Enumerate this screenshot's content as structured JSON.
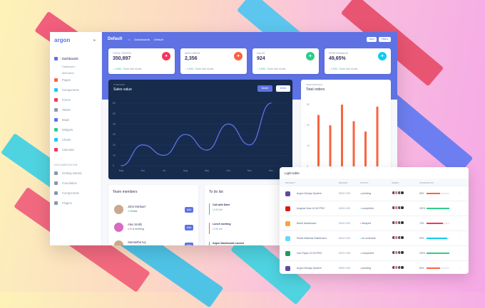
{
  "brand": "argon",
  "sidebar": {
    "items": [
      {
        "label": "Dashboards",
        "color": "#5e72e4",
        "active": true
      },
      {
        "label": "Dashboard",
        "sub": true
      },
      {
        "label": "Alternative",
        "sub": true
      },
      {
        "label": "Pages",
        "color": "#fb6340"
      },
      {
        "label": "Components",
        "color": "#11cdef"
      },
      {
        "label": "Forms",
        "color": "#f5365c"
      },
      {
        "label": "Tables",
        "color": "#8898aa"
      },
      {
        "label": "Maps",
        "color": "#5e72e4"
      },
      {
        "label": "Widgets",
        "color": "#2dce89"
      },
      {
        "label": "Charts",
        "color": "#11cdef"
      },
      {
        "label": "Calendar",
        "color": "#f5365c"
      }
    ],
    "doc_heading": "DOCUMENTATION",
    "doc_items": [
      {
        "label": "Getting started"
      },
      {
        "label": "Foundation"
      },
      {
        "label": "Components"
      },
      {
        "label": "Plugins"
      }
    ]
  },
  "header": {
    "title": "Default",
    "breadcrumb": [
      "Dashboards",
      "Default"
    ],
    "new": "New",
    "filters": "Filters"
  },
  "stats": [
    {
      "label": "Total traffic",
      "value": "350,897",
      "change": "3.48%",
      "since": "Since last month",
      "color": "#f5365c",
      "icon": "hand-pointer-icon"
    },
    {
      "label": "New users",
      "value": "2,356",
      "change": "3.48%",
      "since": "Since last month",
      "color": "#fb6340",
      "icon": "chart-pie-icon"
    },
    {
      "label": "Sales",
      "value": "924",
      "change": "3.48%",
      "since": "Since last month",
      "color": "#2dce89",
      "icon": "money-coins-icon"
    },
    {
      "label": "Performance",
      "value": "49,65%",
      "change": "3.48%",
      "since": "Since last month",
      "color": "#11cdef",
      "icon": "chart-bar-icon"
    }
  ],
  "chart_data": [
    {
      "type": "line",
      "overline": "OVERVIEW",
      "title": "Sales value",
      "buttons": [
        "Month",
        "Week"
      ],
      "categories": [
        "May",
        "Jun",
        "Jul",
        "Aug",
        "Sep",
        "Oct",
        "Nov",
        "Dec"
      ],
      "values": [
        0,
        20,
        10,
        30,
        15,
        40,
        20,
        60
      ],
      "yticks": [
        0,
        10,
        20,
        30,
        40,
        50,
        60
      ],
      "ylim": [
        0,
        60
      ],
      "color": "#5e72e4",
      "grid": true
    },
    {
      "type": "bar",
      "overline": "PERFORMANCE",
      "title": "Total orders",
      "values": [
        25,
        20,
        30,
        22,
        17,
        29
      ],
      "yticks": [
        0,
        10,
        20,
        30
      ],
      "ylim": [
        0,
        30
      ],
      "color": "#fb6340"
    }
  ],
  "team": {
    "title": "Team members",
    "add": "Add",
    "members": [
      {
        "name": "John Michael",
        "status": "Online",
        "dot": "#2dce89"
      },
      {
        "name": "Alex Smith",
        "status": "In a meeting",
        "dot": "#fb6340"
      },
      {
        "name": "Samantha Ivy",
        "status": "",
        "dot": ""
      }
    ]
  },
  "todo": {
    "title": "To do list",
    "items": [
      {
        "title": "Call with Dave",
        "time": "10:30 AM",
        "color": "#2dce89"
      },
      {
        "title": "Lunch meeting",
        "time": "10:30 AM",
        "color": "#fb6340"
      },
      {
        "title": "Argon Dashboard Launch",
        "time": "",
        "color": "#11cdef"
      }
    ]
  },
  "table": {
    "title": "Light table",
    "headers": [
      "PROJECT",
      "BUDGET",
      "STATUS",
      "USERS",
      "COMPLETION"
    ],
    "rows": [
      {
        "project": "Argon Design System",
        "budget": "$2500 USD",
        "status": "pending",
        "status_color": "#f5365c",
        "completion": "60%",
        "pct": 60,
        "bar": "#fb6340",
        "logo": "#5e4b9c"
      },
      {
        "project": "Angular Now UI Kit PRO",
        "budget": "$1800 USD",
        "status": "completed",
        "status_color": "#2dce89",
        "completion": "100%",
        "pct": 100,
        "bar": "#2dce89",
        "logo": "#dd1b16"
      },
      {
        "project": "Black Dashboard",
        "budget": "$3150 USD",
        "status": "delayed",
        "status_color": "#f5365c",
        "completion": "72%",
        "pct": 72,
        "bar": "#f5365c",
        "logo": "#f7a531"
      },
      {
        "project": "React Material Dashboard",
        "budget": "$4400 USD",
        "status": "on schedule",
        "status_color": "#11cdef",
        "completion": "90%",
        "pct": 90,
        "bar": "#11cdef",
        "logo": "#61dafb"
      },
      {
        "project": "Vue Paper UI Kit PRO",
        "budget": "$2200 USD",
        "status": "completed",
        "status_color": "#2dce89",
        "completion": "100%",
        "pct": 100,
        "bar": "#2dce89",
        "logo": "#1b9b5e"
      },
      {
        "project": "Argon Design System",
        "budget": "$2500 USD",
        "status": "pending",
        "status_color": "#f5365c",
        "completion": "60%",
        "pct": 60,
        "bar": "#fb6340",
        "logo": "#5e4b9c"
      }
    ]
  }
}
